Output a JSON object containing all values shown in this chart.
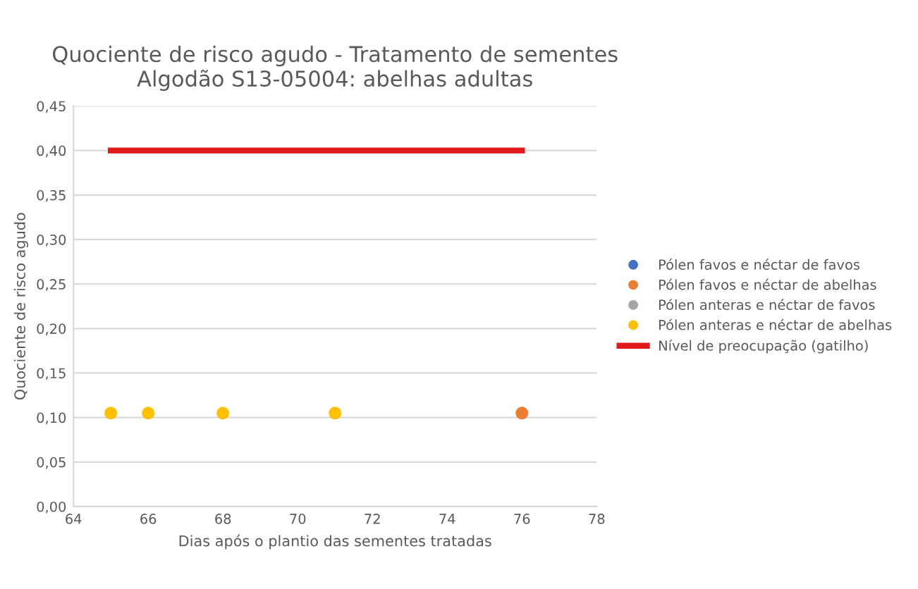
{
  "chart_data": {
    "type": "scatter",
    "title": "Quociente de risco agudo - Tratamento de sementes\nAlgodão S13-05004: abelhas adultas",
    "xlabel": "Dias após o plantio das sementes tratadas",
    "ylabel": "Quociente de risco agudo",
    "series": [
      {
        "name": "Pólen favos e néctar de favos",
        "color": "#4472c4"
      },
      {
        "name": "Pólen favos e néctar de abelhas",
        "color": "#ed7d31",
        "x": [
          76
        ],
        "values": [
          0.105
        ]
      },
      {
        "name": "Pólen anteras e néctar de favos",
        "color": "#a5a5a5"
      },
      {
        "name": "Pólen anteras e néctar de abelhas",
        "color": "#ffc000",
        "x": [
          65,
          66,
          68,
          71
        ],
        "values": [
          0.105,
          0.105,
          0.105,
          0.105
        ]
      },
      {
        "name": "Nível de preocupação (gatilho)",
        "type": "line",
        "marker": "none",
        "color": "#e31a1c",
        "x": [
          65,
          76
        ],
        "values": [
          0.4,
          0.4
        ]
      }
    ],
    "xlim": [
      64,
      78
    ],
    "xticks": [
      64,
      66,
      68,
      70,
      72,
      74,
      76,
      78
    ],
    "ylim": [
      0,
      0.45
    ],
    "yticks": [
      {
        "value": 0,
        "label": "0,00"
      },
      {
        "value": 0.05,
        "label": "0,05"
      },
      {
        "value": 0.1,
        "label": "0,10"
      },
      {
        "value": 0.15,
        "label": "0,15"
      },
      {
        "value": 0.2,
        "label": "0,20"
      },
      {
        "value": 0.25,
        "label": "0,25"
      },
      {
        "value": 0.3,
        "label": "0,30"
      },
      {
        "value": 0.35,
        "label": "0,35"
      },
      {
        "value": 0.4,
        "label": "0,40"
      },
      {
        "value": 0.45,
        "label": "0,45"
      }
    ],
    "grid": "y",
    "legend": "right",
    "marker": "circle"
  }
}
